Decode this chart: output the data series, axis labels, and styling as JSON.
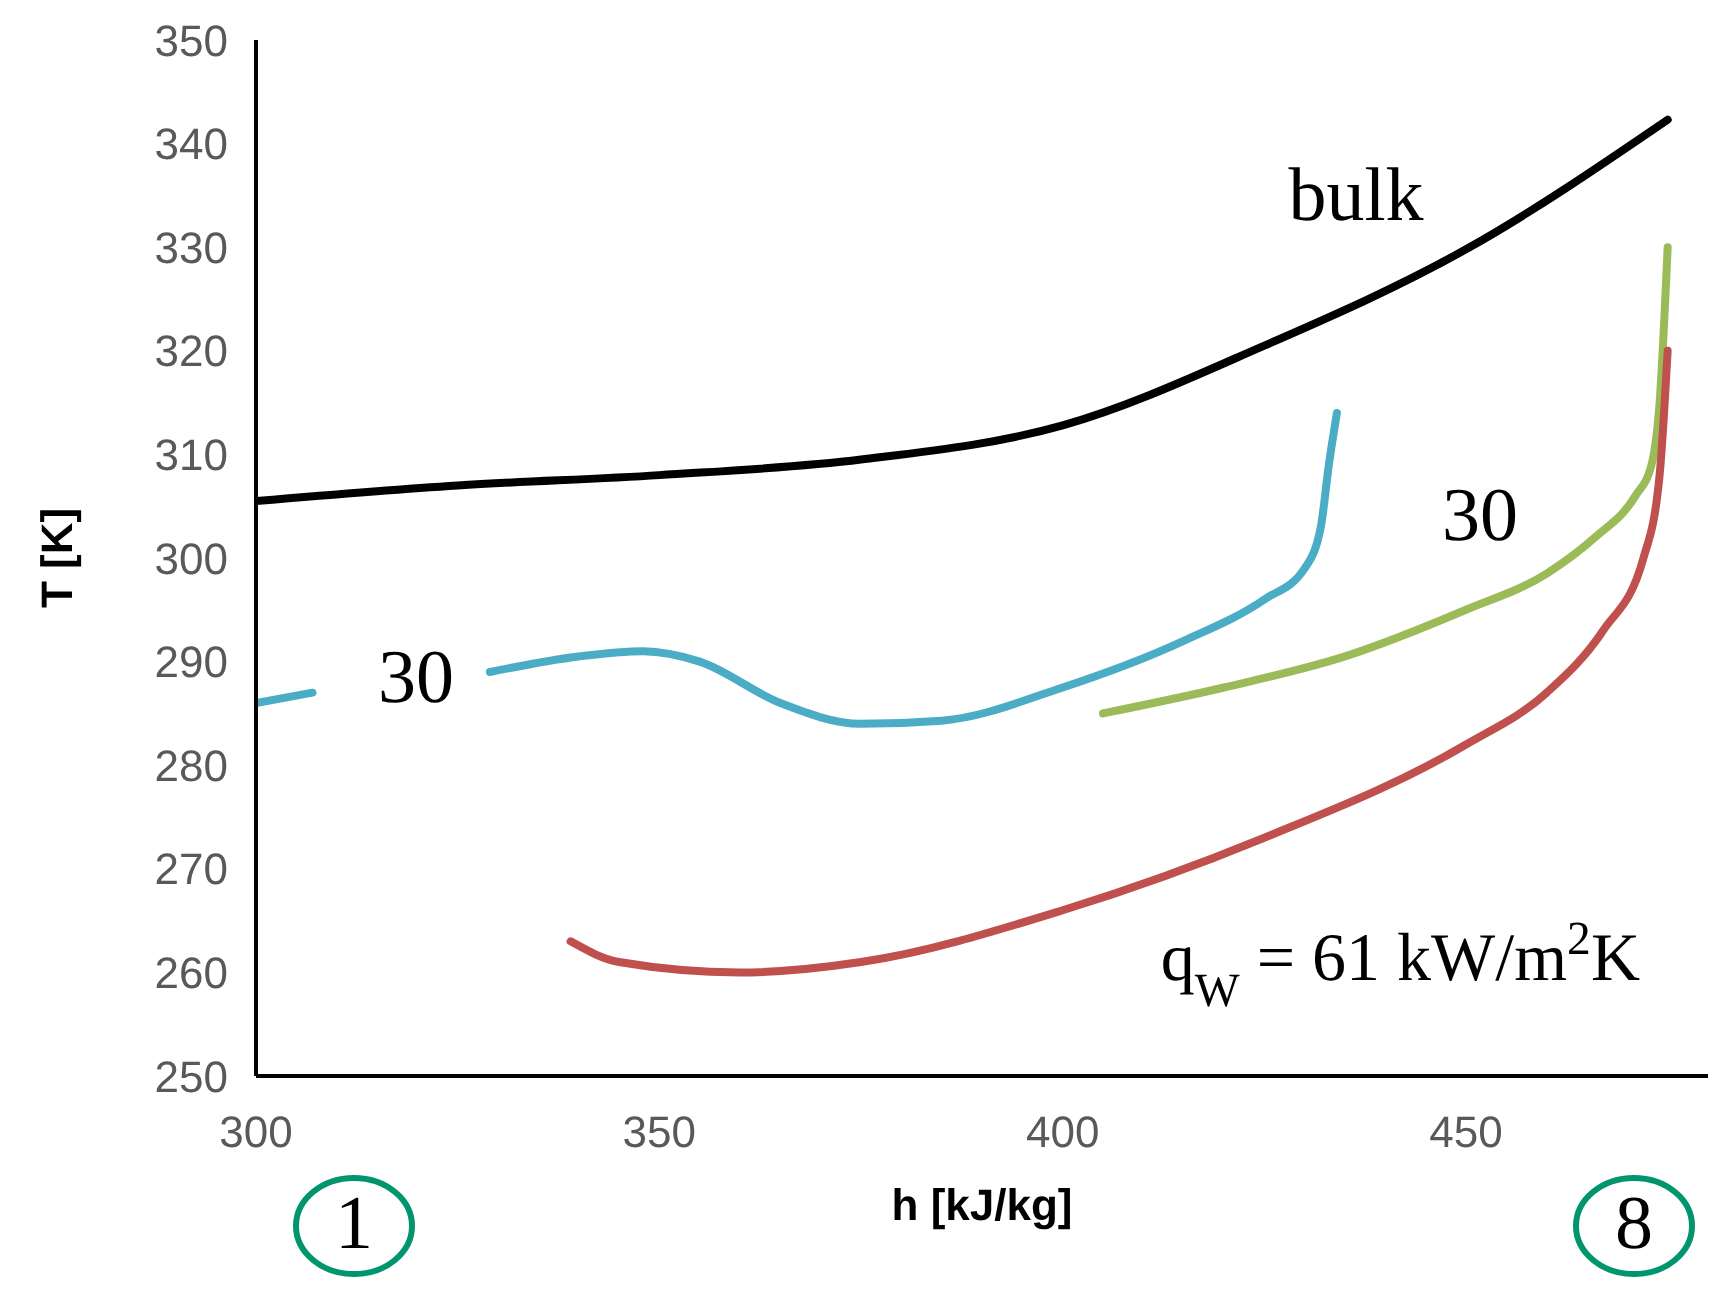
{
  "chart_data": {
    "type": "line",
    "xlabel": "h [kJ/kg]",
    "ylabel": "T [K]",
    "xlim": [
      300,
      480
    ],
    "xticks": [
      300,
      350,
      400,
      450
    ],
    "ylim": [
      250,
      350
    ],
    "yticks": [
      250,
      260,
      270,
      280,
      290,
      300,
      310,
      320,
      330,
      340,
      350
    ],
    "grid": false,
    "marker": "none",
    "line_style": "solid",
    "series": [
      {
        "color": "#000000",
        "x": [
          300,
          325,
          350,
          375,
          400,
          425,
          450,
          475
        ],
        "values": [
          305.5,
          307,
          308,
          309.5,
          312.8,
          320.5,
          329.8,
          342.3
        ]
      },
      {
        "color": "#4bacc6",
        "x": [
          300,
          307,
          318,
          329,
          340,
          348,
          355,
          365,
          375,
          385,
          400,
          415,
          425,
          430,
          432,
          433,
          434
        ],
        "values": [
          286,
          287,
          null,
          289,
          290.5,
          291,
          290,
          286,
          284,
          284.3,
          287.5,
          292,
          296,
          299,
          303,
          309,
          314
        ]
      },
      {
        "color": "#9bbb59",
        "x": [
          405,
          420,
          435,
          450,
          460,
          466,
          471,
          473,
          474,
          475
        ],
        "values": [
          285,
          287.5,
          290.5,
          295,
          298.5,
          302,
          306,
          309,
          315,
          330
        ]
      },
      {
        "color": "#c0504d",
        "x": [
          339,
          345,
          360,
          375,
          400,
          425,
          450,
          460,
          467,
          472,
          474,
          475
        ],
        "values": [
          263,
          261,
          260,
          261,
          266,
          273,
          282,
          287,
          293,
          300,
          308,
          320
        ]
      }
    ],
    "annotations": [
      "bulk",
      "30",
      "30",
      "q$_{W}$ = 61 kW/m$^{2}$K",
      "1",
      "8"
    ]
  }
}
